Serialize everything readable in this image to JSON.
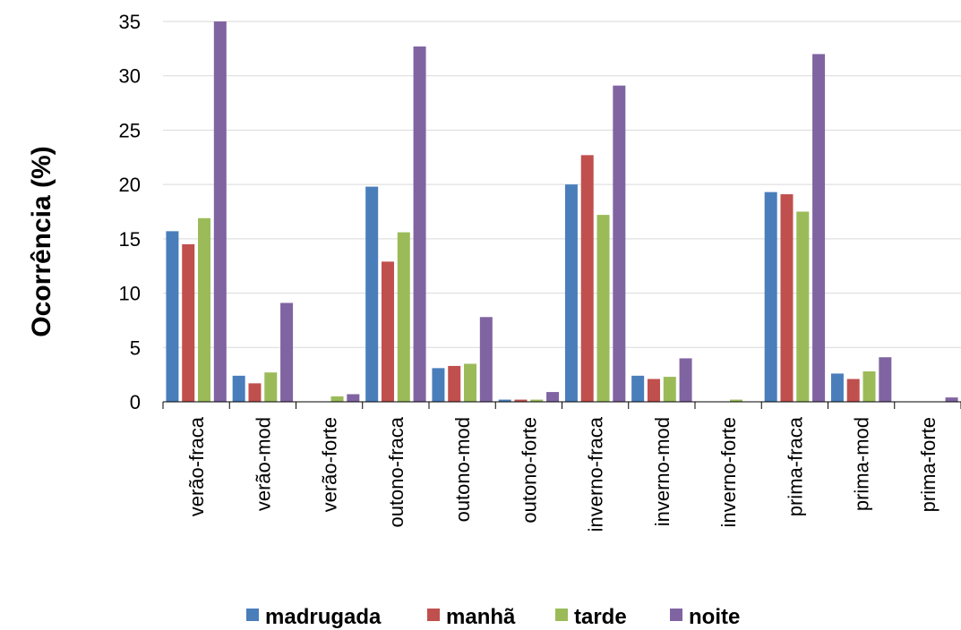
{
  "chart_data": {
    "type": "bar",
    "ylabel": "Ocorrência (%)",
    "xlabel": "",
    "ylim": [
      0,
      35
    ],
    "yticks": [
      0,
      5,
      10,
      15,
      20,
      25,
      30,
      35
    ],
    "grid": "horizontal",
    "legend_position": "bottom",
    "categories": [
      "verão-fraca",
      "verão-mod",
      "verão-forte",
      "outono-fraca",
      "outono-mod",
      "outono-forte",
      "inverno-fraca",
      "inverno-mod",
      "inverno-forte",
      "prima-fraca",
      "prima-mod",
      "prima-forte"
    ],
    "series": [
      {
        "name": "madrugada",
        "color": "#4a7ebb",
        "values": [
          15.7,
          2.4,
          0,
          19.8,
          3.1,
          0.2,
          20.0,
          2.4,
          0,
          19.3,
          2.6,
          0
        ]
      },
      {
        "name": "manhã",
        "color": "#c0504d",
        "values": [
          14.5,
          1.7,
          0,
          12.9,
          3.3,
          0.2,
          22.7,
          2.1,
          0,
          19.1,
          2.1,
          0
        ]
      },
      {
        "name": "tarde",
        "color": "#9bbb59",
        "values": [
          16.9,
          2.7,
          0.5,
          15.6,
          3.5,
          0.2,
          17.2,
          2.3,
          0.2,
          17.5,
          2.8,
          0
        ]
      },
      {
        "name": "noite",
        "color": "#8064a2",
        "values": [
          35.0,
          9.1,
          0.7,
          32.7,
          7.8,
          0.9,
          29.1,
          4.0,
          0,
          32.0,
          4.1,
          0.4
        ]
      }
    ]
  }
}
